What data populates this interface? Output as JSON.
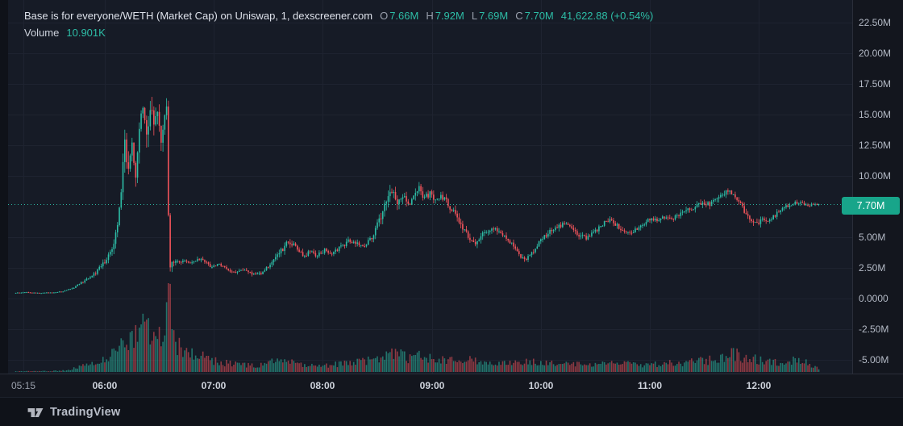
{
  "header": {
    "title": "Base is for everyone/WETH (Market Cap) on Uniswap, 1, dexscreener.com",
    "o_label": "O",
    "o_value": "7.66M",
    "h_label": "H",
    "h_value": "7.92M",
    "l_label": "L",
    "l_value": "7.69M",
    "c_label": "C",
    "c_value": "7.70M",
    "change": "41,622.88 (+0.54%)",
    "volume_label": "Volume",
    "volume_value": "10.901K"
  },
  "price_axis": {
    "badge": "7.70M",
    "labels": [
      {
        "text": "22.50M",
        "value": 22.5
      },
      {
        "text": "20.00M",
        "value": 20
      },
      {
        "text": "17.50M",
        "value": 17.5
      },
      {
        "text": "15.00M",
        "value": 15
      },
      {
        "text": "12.50M",
        "value": 12.5
      },
      {
        "text": "10.00M",
        "value": 10
      },
      {
        "text": "5.00M",
        "value": 5
      },
      {
        "text": "2.50M",
        "value": 2.5
      },
      {
        "text": "0.0000",
        "value": 0
      },
      {
        "text": "-2.50M",
        "value": -2.5
      },
      {
        "text": "-5.00M",
        "value": -5
      }
    ]
  },
  "time_axis": {
    "labels": [
      {
        "text": "05:15",
        "minute": 315,
        "strong": false
      },
      {
        "text": "06:00",
        "minute": 360,
        "strong": true
      },
      {
        "text": "07:00",
        "minute": 420,
        "strong": true
      },
      {
        "text": "08:00",
        "minute": 480,
        "strong": true
      },
      {
        "text": "09:00",
        "minute": 540,
        "strong": true
      },
      {
        "text": "10:00",
        "minute": 600,
        "strong": true
      },
      {
        "text": "11:00",
        "minute": 660,
        "strong": true
      },
      {
        "text": "12:00",
        "minute": 720,
        "strong": true
      }
    ]
  },
  "footer": {
    "brand": "TradingView"
  },
  "colors": {
    "up": "#2dbda6",
    "down": "#f2545b",
    "price_line": "#2bb5a0",
    "badge_bg": "#18a58a",
    "grid": "#1e2330",
    "pane_bg": "#161b26",
    "axis_text": "#b4bac6",
    "volume_opacity": 0.55
  },
  "chart_data": {
    "type": "candlestick_with_volume",
    "title": "Base is for everyone/WETH (Market Cap) on Uniswap, 1, dexscreener.com",
    "pair": "Base is for everyone/WETH",
    "metric": "Market Cap",
    "venue": "Uniswap",
    "interval_minutes": 1,
    "source": "dexscreener.com",
    "last_bar": {
      "open_m": 7.66,
      "high_m": 7.92,
      "low_m": 7.69,
      "close_m": 7.7,
      "change_abs": "41,622.88",
      "change_pct": "+0.54%",
      "volume": "10.901K"
    },
    "price_line_value_m": 7.7,
    "y_axis": {
      "unit": "market cap, millions",
      "visible_range_m": [
        -6.1,
        24.3
      ],
      "tick_step_m": 2.5
    },
    "x_axis": {
      "start": "05:11",
      "end": "12:33",
      "start_minute": 311,
      "end_minute": 753,
      "gridline_minutes": [
        315,
        360,
        420,
        480,
        540,
        600,
        660,
        720
      ]
    },
    "price_keyframes_min_priceM_volM": [
      [
        311,
        0.45,
        0.05
      ],
      [
        316,
        0.52,
        0.06
      ],
      [
        320,
        0.48,
        0.05
      ],
      [
        326,
        0.45,
        0.04
      ],
      [
        332,
        0.5,
        0.05
      ],
      [
        338,
        0.58,
        0.07
      ],
      [
        344,
        0.9,
        0.12
      ],
      [
        348,
        1.3,
        0.16
      ],
      [
        352,
        1.65,
        0.2
      ],
      [
        356,
        2.1,
        0.28
      ],
      [
        360,
        2.8,
        0.38
      ],
      [
        363,
        3.6,
        0.5
      ],
      [
        366,
        4.6,
        0.65
      ],
      [
        368,
        6.2,
        0.95
      ],
      [
        370,
        8.8,
        1.4
      ],
      [
        372,
        12.6,
        1.6
      ],
      [
        374,
        10.8,
        1.4
      ],
      [
        376,
        12.4,
        1.3
      ],
      [
        378,
        10.4,
        1.3
      ],
      [
        380,
        13.2,
        1.6
      ],
      [
        382,
        15.8,
        1.6
      ],
      [
        384,
        12.9,
        1.5
      ],
      [
        386,
        16.0,
        1.6
      ],
      [
        388,
        13.7,
        1.4
      ],
      [
        390,
        15.2,
        1.6
      ],
      [
        392,
        13.0,
        1.3
      ],
      [
        394,
        14.8,
        1.0
      ],
      [
        395,
        15.3,
        0.8
      ],
      [
        396,
        6.5,
        1.4
      ],
      [
        397,
        2.6,
        0.6
      ],
      [
        399,
        3.1,
        0.42
      ],
      [
        402,
        2.85,
        0.36
      ],
      [
        405,
        3.15,
        0.36
      ],
      [
        408,
        2.9,
        0.32
      ],
      [
        412,
        3.3,
        0.36
      ],
      [
        416,
        2.95,
        0.3
      ],
      [
        420,
        2.5,
        0.28
      ],
      [
        424,
        2.8,
        0.28
      ],
      [
        428,
        2.4,
        0.26
      ],
      [
        433,
        2.15,
        0.24
      ],
      [
        438,
        2.3,
        0.24
      ],
      [
        444,
        1.9,
        0.22
      ],
      [
        448,
        2.15,
        0.26
      ],
      [
        453,
        2.95,
        0.38
      ],
      [
        458,
        3.85,
        0.48
      ],
      [
        462,
        4.75,
        0.48
      ],
      [
        466,
        4.25,
        0.42
      ],
      [
        470,
        3.45,
        0.38
      ],
      [
        474,
        3.85,
        0.38
      ],
      [
        478,
        3.5,
        0.34
      ],
      [
        482,
        3.95,
        0.36
      ],
      [
        486,
        3.6,
        0.32
      ],
      [
        490,
        4.15,
        0.36
      ],
      [
        495,
        4.65,
        0.4
      ],
      [
        500,
        4.55,
        0.4
      ],
      [
        504,
        4.35,
        0.38
      ],
      [
        508,
        5.05,
        0.48
      ],
      [
        512,
        6.3,
        0.65
      ],
      [
        516,
        8.2,
        0.95
      ],
      [
        519,
        8.9,
        0.75
      ],
      [
        522,
        7.95,
        0.65
      ],
      [
        525,
        8.55,
        0.65
      ],
      [
        528,
        7.65,
        0.6
      ],
      [
        531,
        8.35,
        0.65
      ],
      [
        534,
        8.9,
        0.65
      ],
      [
        537,
        8.15,
        0.6
      ],
      [
        540,
        8.55,
        0.6
      ],
      [
        543,
        7.85,
        0.55
      ],
      [
        546,
        8.35,
        0.6
      ],
      [
        549,
        7.95,
        0.55
      ],
      [
        552,
        7.25,
        0.55
      ],
      [
        555,
        6.45,
        0.6
      ],
      [
        558,
        5.75,
        0.55
      ],
      [
        561,
        5.05,
        0.5
      ],
      [
        564,
        4.45,
        0.45
      ],
      [
        567,
        4.95,
        0.45
      ],
      [
        570,
        5.45,
        0.45
      ],
      [
        574,
        5.75,
        0.42
      ],
      [
        578,
        5.35,
        0.4
      ],
      [
        582,
        4.95,
        0.4
      ],
      [
        586,
        4.35,
        0.4
      ],
      [
        589,
        3.65,
        0.38
      ],
      [
        592,
        3.1,
        0.34
      ],
      [
        595,
        3.55,
        0.38
      ],
      [
        598,
        4.15,
        0.42
      ],
      [
        602,
        4.85,
        0.44
      ],
      [
        606,
        5.45,
        0.44
      ],
      [
        610,
        5.85,
        0.42
      ],
      [
        614,
        6.1,
        0.42
      ],
      [
        618,
        5.65,
        0.38
      ],
      [
        622,
        5.15,
        0.38
      ],
      [
        626,
        4.9,
        0.36
      ],
      [
        630,
        5.35,
        0.38
      ],
      [
        634,
        5.95,
        0.42
      ],
      [
        638,
        6.4,
        0.42
      ],
      [
        642,
        6.05,
        0.38
      ],
      [
        646,
        5.55,
        0.38
      ],
      [
        650,
        5.3,
        0.36
      ],
      [
        654,
        5.75,
        0.38
      ],
      [
        658,
        6.15,
        0.38
      ],
      [
        662,
        6.55,
        0.4
      ],
      [
        666,
        6.35,
        0.38
      ],
      [
        670,
        6.75,
        0.38
      ],
      [
        674,
        6.55,
        0.38
      ],
      [
        678,
        6.95,
        0.42
      ],
      [
        682,
        7.25,
        0.42
      ],
      [
        686,
        7.55,
        0.44
      ],
      [
        690,
        7.85,
        0.48
      ],
      [
        694,
        7.65,
        0.44
      ],
      [
        698,
        8.05,
        0.48
      ],
      [
        702,
        8.6,
        0.52
      ],
      [
        705,
        8.85,
        0.48
      ],
      [
        708,
        8.35,
        0.48
      ],
      [
        711,
        7.65,
        0.48
      ],
      [
        714,
        6.95,
        0.48
      ],
      [
        717,
        6.25,
        0.46
      ],
      [
        720,
        6.05,
        0.42
      ],
      [
        723,
        6.45,
        0.4
      ],
      [
        726,
        6.25,
        0.36
      ],
      [
        729,
        6.65,
        0.36
      ],
      [
        732,
        7.05,
        0.36
      ],
      [
        736,
        7.45,
        0.36
      ],
      [
        740,
        7.7,
        0.34
      ],
      [
        744,
        7.9,
        0.3
      ],
      [
        747,
        7.6,
        0.26
      ],
      [
        750,
        7.62,
        0.22
      ],
      [
        753,
        7.7,
        0.16
      ]
    ],
    "volume_keyframes_min_volK": [
      [
        311,
        2
      ],
      [
        330,
        3
      ],
      [
        340,
        6
      ],
      [
        344,
        14
      ],
      [
        350,
        22
      ],
      [
        356,
        30
      ],
      [
        360,
        40
      ],
      [
        364,
        60
      ],
      [
        368,
        80
      ],
      [
        372,
        100
      ],
      [
        376,
        115
      ],
      [
        380,
        150
      ],
      [
        384,
        160
      ],
      [
        386,
        125
      ],
      [
        388,
        175
      ],
      [
        390,
        125
      ],
      [
        392,
        105
      ],
      [
        395,
        272
      ],
      [
        397,
        150
      ],
      [
        399,
        95
      ],
      [
        402,
        75
      ],
      [
        406,
        58
      ],
      [
        410,
        62
      ],
      [
        415,
        48
      ],
      [
        420,
        38
      ],
      [
        425,
        32
      ],
      [
        430,
        27
      ],
      [
        436,
        23
      ],
      [
        442,
        21
      ],
      [
        450,
        32
      ],
      [
        456,
        38
      ],
      [
        462,
        32
      ],
      [
        470,
        26
      ],
      [
        480,
        23
      ],
      [
        490,
        26
      ],
      [
        500,
        32
      ],
      [
        508,
        42
      ],
      [
        514,
        58
      ],
      [
        520,
        62
      ],
      [
        526,
        48
      ],
      [
        532,
        52
      ],
      [
        538,
        46
      ],
      [
        544,
        42
      ],
      [
        550,
        38
      ],
      [
        556,
        42
      ],
      [
        562,
        38
      ],
      [
        570,
        32
      ],
      [
        578,
        30
      ],
      [
        586,
        32
      ],
      [
        592,
        38
      ],
      [
        600,
        32
      ],
      [
        608,
        29
      ],
      [
        616,
        26
      ],
      [
        624,
        23
      ],
      [
        632,
        26
      ],
      [
        640,
        29
      ],
      [
        648,
        26
      ],
      [
        656,
        23
      ],
      [
        664,
        26
      ],
      [
        672,
        29
      ],
      [
        680,
        32
      ],
      [
        688,
        36
      ],
      [
        696,
        42
      ],
      [
        702,
        48
      ],
      [
        706,
        62
      ],
      [
        712,
        46
      ],
      [
        718,
        42
      ],
      [
        724,
        36
      ],
      [
        730,
        31
      ],
      [
        736,
        36
      ],
      [
        742,
        42
      ],
      [
        748,
        26
      ],
      [
        753,
        11
      ]
    ]
  }
}
